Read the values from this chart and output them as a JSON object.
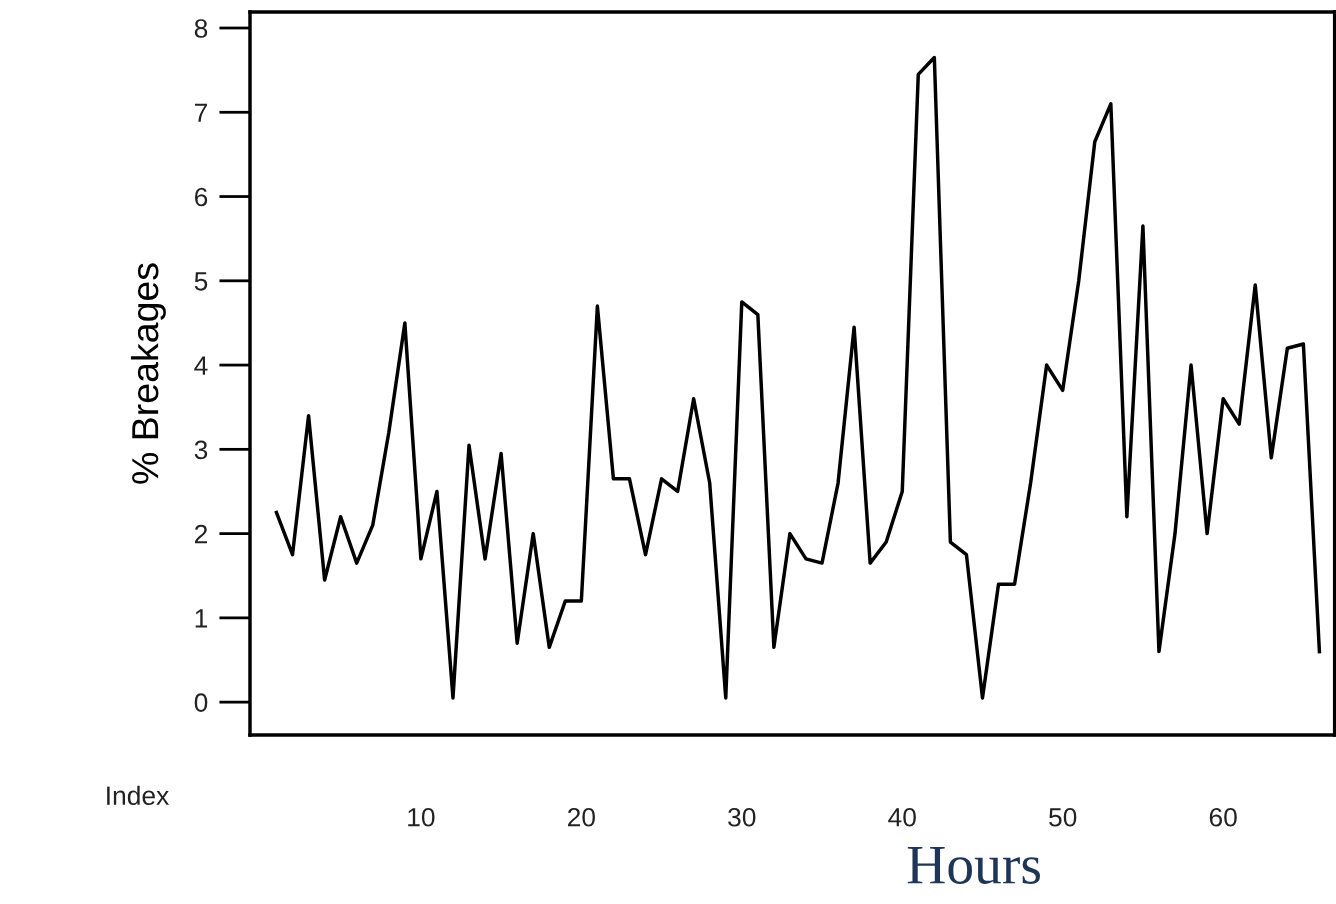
{
  "chart_data": {
    "type": "line",
    "ylabel": "% Breakages",
    "xlabel": "Hours",
    "annotations": [
      "Index"
    ],
    "x": [
      1,
      2,
      3,
      4,
      5,
      6,
      7,
      8,
      9,
      10,
      11,
      12,
      13,
      14,
      15,
      16,
      17,
      18,
      19,
      20,
      21,
      22,
      23,
      24,
      25,
      26,
      27,
      28,
      29,
      30,
      31,
      32,
      33,
      34,
      35,
      36,
      37,
      38,
      39,
      40,
      41,
      42,
      43,
      44,
      45,
      46,
      47,
      48,
      49,
      50,
      51,
      52,
      53,
      54,
      55,
      56,
      57,
      58,
      59,
      60,
      61,
      62,
      63,
      64,
      65,
      66
    ],
    "series": [
      {
        "color": "#000000",
        "values": [
          2.25,
          1.75,
          3.4,
          1.45,
          2.2,
          1.65,
          2.1,
          3.2,
          4.5,
          1.7,
          2.5,
          0.05,
          3.05,
          1.7,
          2.95,
          0.7,
          2.0,
          0.65,
          1.2,
          1.2,
          4.7,
          2.65,
          2.65,
          1.75,
          2.65,
          2.5,
          3.6,
          2.6,
          0.05,
          4.75,
          4.6,
          0.65,
          2.0,
          1.7,
          1.65,
          2.6,
          4.45,
          1.65,
          1.9,
          2.5,
          7.45,
          7.65,
          1.9,
          1.75,
          0.05,
          1.4,
          1.4,
          2.6,
          4.0,
          3.7,
          5.0,
          6.65,
          7.1,
          2.2,
          5.65,
          0.6,
          2.0,
          4.0,
          2.0,
          3.6,
          3.3,
          4.95,
          2.9,
          4.2,
          4.25,
          0.6
        ]
      }
    ],
    "xlim": [
      -0.65,
      66.95
    ],
    "ylim": [
      -0.39,
      8.19
    ],
    "xticks": [
      10,
      20,
      30,
      40,
      50,
      60
    ],
    "yticks": [
      0,
      1,
      2,
      3,
      4,
      5,
      6,
      7,
      8
    ],
    "grid": false,
    "legend": false,
    "marker": "none",
    "line_style": "solid"
  }
}
